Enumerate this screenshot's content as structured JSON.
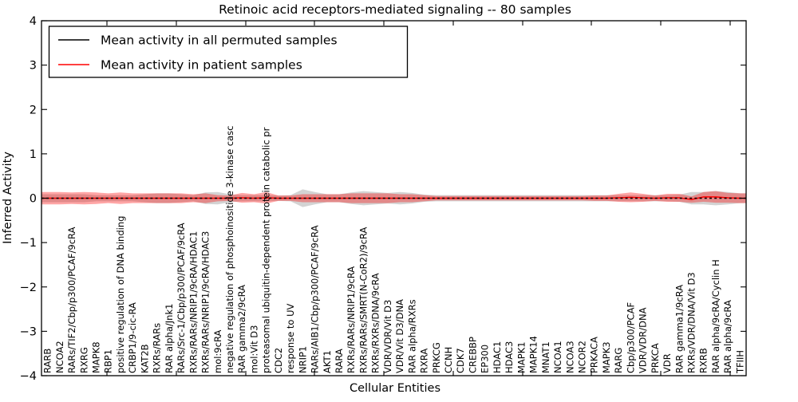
{
  "chart_data": {
    "type": "line",
    "title": "Retinoic acid receptors-mediated signaling -- 80 samples",
    "xlabel": "Cellular Entities",
    "ylabel": "Inferred Activity",
    "ylim": [
      -4,
      4
    ],
    "ytick_labels": [
      "4",
      "3",
      "2",
      "1",
      "0",
      "−1",
      "−2",
      "−3",
      "−4"
    ],
    "ytick_values": [
      4,
      3,
      2,
      1,
      0,
      -1,
      -2,
      -3,
      -4
    ],
    "grid": false,
    "legend_position": "upper left",
    "categories": [
      "RARB",
      "NCOA2",
      "RARs/TIF2/Cbp/p300/PCAF/9cRA",
      "RXRG",
      "MAPK8",
      "RBP1",
      "positive regulation of DNA binding",
      "CRBP1/9-cic-RA",
      "KAT2B",
      "RXRs/RARs",
      "RAR alpha/Jnk1",
      "RARs/Src-1/Cbp/p300/PCAF/9cRA",
      "RXRs/RARs/NRIP1/9cRA/HDAC1",
      "RXRs/RARs/NRIP1/9cRA/HDAC3",
      "mol:9cRA",
      "negative regulation of phosphoinositide 3-kinase casc",
      "RAR gamma2/9cRA",
      "mol:Vit D3",
      "proteasomal ubiquitin-dependent protein catabolic pr",
      "CDC2",
      "response to UV",
      "NRIP1",
      "RARs/AIB1/Cbp/p300/PCAF/9cRA",
      "AKT1",
      "RARA",
      "RXRs/RARs/NRIP1/9cRA",
      "RXRs/RARs/SMRT(N-CoR2)/9cRA",
      "RXRs/RXRs/DNA/9cRA",
      "VDR/VDR/Vit D3",
      "VDR/Vit D3/DNA",
      "RAR alpha/RXRs",
      "RXRA",
      "PRKCG",
      "CCNH",
      "CDK7",
      "CREBBP",
      "EP300",
      "HDAC1",
      "HDAC3",
      "MAPK1",
      "MAPK14",
      "MNAT1",
      "NCOA1",
      "NCOA3",
      "NCOR2",
      "PRKACA",
      "MAPK3",
      "RARG",
      "Cbp/p300/PCAF",
      "VDR/VDR/DNA",
      "PRKCA",
      "VDR",
      "RAR gamma1/9cRA",
      "RXRs/VDR/DNA/Vit D3",
      "RXRB",
      "RAR alpha/9cRA/Cyclin H",
      "RAR alpha/9cRA",
      "TFIIH"
    ],
    "series": [
      {
        "name": "Mean activity in all permuted samples",
        "color": "#000000",
        "style": "dashed",
        "values": [
          0,
          0,
          0,
          0,
          0,
          0,
          0,
          0,
          0,
          0,
          0,
          0,
          0,
          0,
          0,
          0,
          0,
          0,
          0,
          0,
          0,
          0,
          0,
          0,
          0,
          0,
          0,
          0,
          0,
          0,
          0,
          0,
          0,
          0,
          0,
          0,
          0,
          0,
          0,
          0,
          0,
          0,
          0,
          0,
          0,
          0,
          0,
          0,
          0,
          0,
          0,
          0,
          0,
          0,
          0,
          0,
          0,
          0
        ],
        "band_color": "#909090",
        "band_alpha": 0.4,
        "band_half_widths": [
          0.09,
          0.09,
          0.09,
          0.09,
          0.07,
          0.07,
          0.07,
          0.07,
          0.09,
          0.11,
          0.11,
          0.09,
          0.07,
          0.13,
          0.14,
          0.09,
          0.07,
          0.07,
          0.07,
          0.06,
          0.07,
          0.2,
          0.14,
          0.09,
          0.09,
          0.13,
          0.16,
          0.14,
          0.12,
          0.14,
          0.12,
          0.08,
          0.07,
          0.07,
          0.07,
          0.07,
          0.07,
          0.07,
          0.07,
          0.07,
          0.07,
          0.07,
          0.07,
          0.07,
          0.07,
          0.07,
          0.07,
          0.07,
          0.07,
          0.07,
          0.07,
          0.07,
          0.08,
          0.14,
          0.14,
          0.16,
          0.14,
          0.11
        ]
      },
      {
        "name": "Mean activity in patient samples",
        "color": "#ff0000",
        "style": "solid",
        "values": [
          0,
          0,
          0,
          0,
          0,
          0,
          0,
          0,
          0,
          0,
          0,
          0,
          0,
          0,
          0,
          0,
          0.01,
          0,
          0.01,
          0,
          0,
          0,
          0,
          0,
          0,
          0,
          0,
          0,
          0,
          0,
          0,
          0,
          0,
          0,
          0,
          0,
          0,
          0,
          0,
          0,
          0,
          0,
          0,
          0,
          0,
          0,
          0,
          0.01,
          0.02,
          0.01,
          0,
          0.01,
          0.01,
          -0.03,
          0.03,
          0.03,
          0.01,
          0
        ],
        "band_color": "#ff0000",
        "band_alpha": 0.35,
        "band_half_widths": [
          0.14,
          0.14,
          0.13,
          0.14,
          0.13,
          0.11,
          0.13,
          0.11,
          0.11,
          0.11,
          0.11,
          0.11,
          0.09,
          0.11,
          0.07,
          0.06,
          0.11,
          0.09,
          0.13,
          0.06,
          0.06,
          0.09,
          0.09,
          0.09,
          0.09,
          0.11,
          0.11,
          0.11,
          0.11,
          0.09,
          0.09,
          0.07,
          0.05,
          0.05,
          0.05,
          0.05,
          0.05,
          0.05,
          0.05,
          0.05,
          0.05,
          0.05,
          0.05,
          0.05,
          0.05,
          0.06,
          0.06,
          0.09,
          0.11,
          0.09,
          0.06,
          0.09,
          0.09,
          0.07,
          0.11,
          0.13,
          0.11,
          0.11
        ]
      }
    ]
  }
}
